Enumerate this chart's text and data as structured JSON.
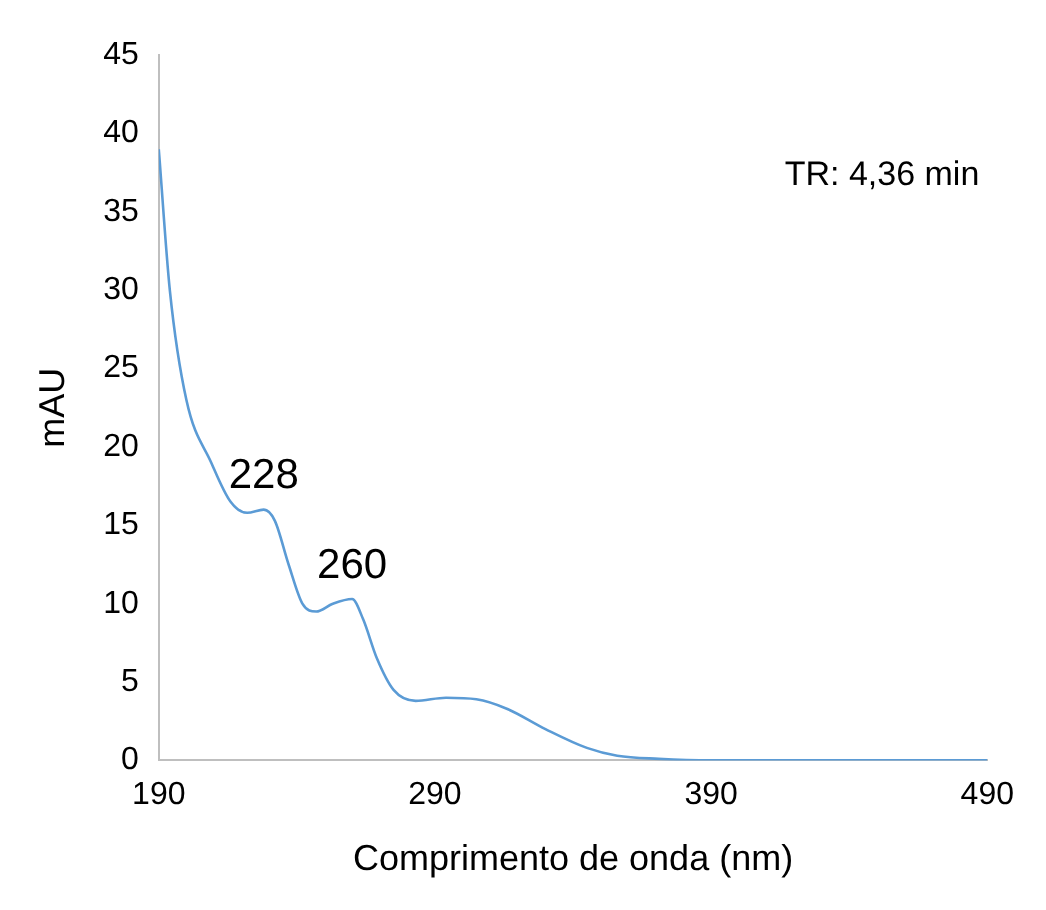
{
  "chart_data": {
    "type": "line",
    "xlabel": "Comprimento de onda (nm)",
    "ylabel": "mAU",
    "xlim": [
      190,
      490
    ],
    "xticks": [
      190,
      290,
      390,
      490
    ],
    "ylim": [
      0,
      45
    ],
    "yticks": [
      0,
      5,
      10,
      15,
      20,
      25,
      30,
      35,
      40,
      45
    ],
    "grid": false,
    "legend": false,
    "marker": "none",
    "line_style": "solid",
    "series": [
      {
        "color": "#5b9bd5",
        "x": [
          190,
          194,
          200,
          209,
          216,
          222,
          228,
          232,
          237,
          242,
          247,
          253,
          260,
          264,
          269,
          275,
          283,
          294,
          305,
          316,
          330,
          345,
          356,
          371,
          390,
          490
        ],
        "values": [
          39,
          30,
          23,
          19,
          16.5,
          15.8,
          16,
          15.3,
          12.5,
          10,
          9.5,
          10,
          10.3,
          9,
          6.5,
          4.5,
          3.8,
          4,
          3.9,
          3.3,
          2,
          0.8,
          0.3,
          0.1,
          0,
          0
        ]
      }
    ],
    "annotations": [
      {
        "text": "228",
        "x": 228,
        "y": 16
      },
      {
        "text": "260",
        "x": 260,
        "y": 10.3
      },
      "TR: 4,36 min"
    ]
  }
}
